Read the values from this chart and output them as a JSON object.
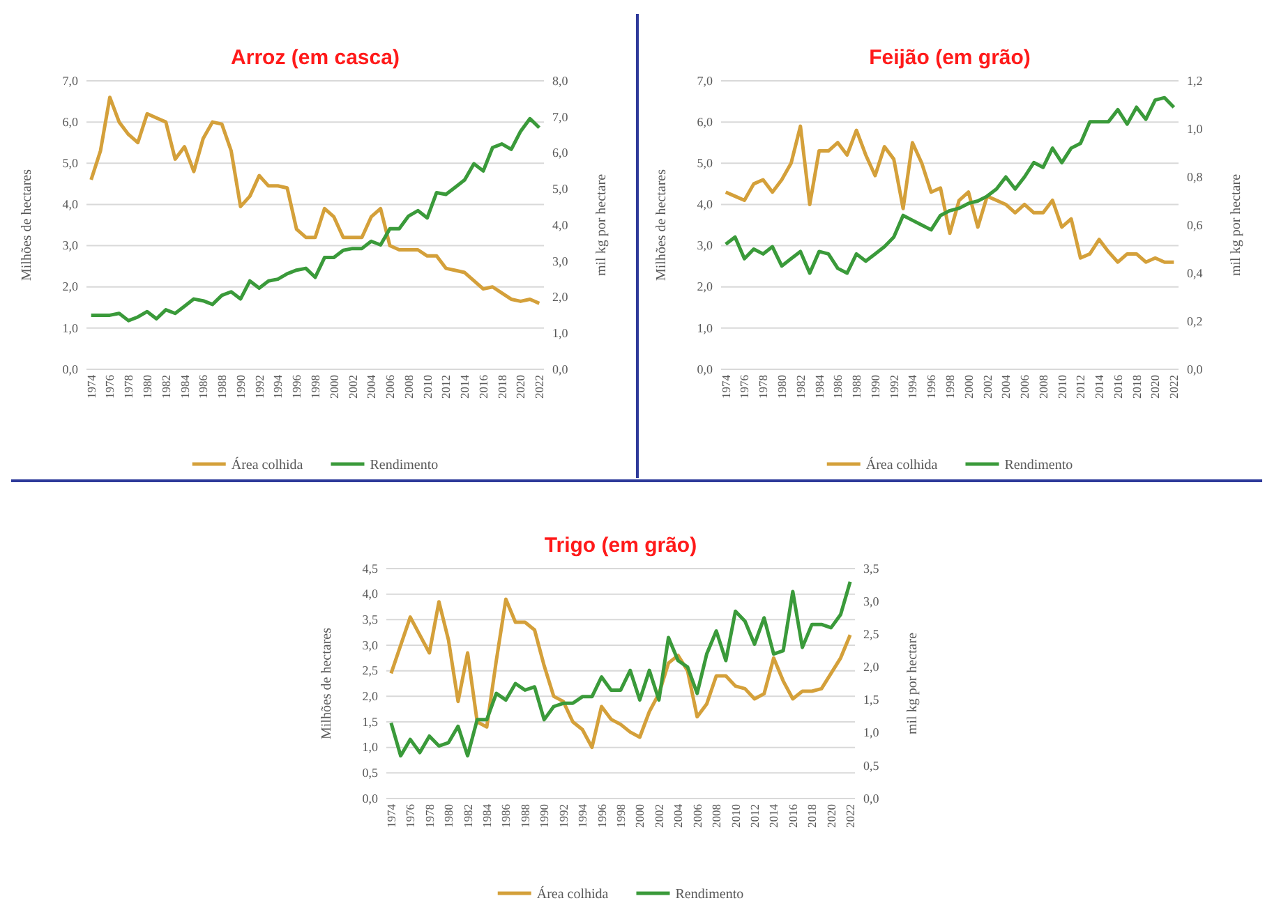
{
  "chart_data": [
    {
      "type": "line",
      "title": "Arroz (em casca)",
      "ylabel": "Milhões de hectares",
      "y2label": "mil kg por hectare",
      "categories": [
        "1974",
        null,
        "1976",
        null,
        "1978",
        null,
        "1980",
        null,
        "1982",
        null,
        "1984",
        null,
        "1986",
        null,
        "1988",
        null,
        "1990",
        null,
        "1992",
        null,
        "1994",
        null,
        "1996",
        null,
        "1998",
        null,
        "2000",
        null,
        "2002",
        null,
        "2004",
        null,
        "2006",
        null,
        "2008",
        null,
        "2010",
        null,
        "2012",
        null,
        "2014",
        null,
        "2016",
        null,
        "2018",
        null,
        "2020",
        null,
        "2022"
      ],
      "ylim": [
        0,
        7
      ],
      "yticks": [
        {
          "value": 0,
          "label": "0,0"
        },
        {
          "value": 1,
          "label": "1,0"
        },
        {
          "value": 2,
          "label": "2,0"
        },
        {
          "value": 3,
          "label": "3,0"
        },
        {
          "value": 4,
          "label": "4,0"
        },
        {
          "value": 5,
          "label": "5,0"
        },
        {
          "value": 6,
          "label": "6,0"
        },
        {
          "value": 7,
          "label": "7,0"
        }
      ],
      "y2lim": [
        0,
        8
      ],
      "y2ticks": [
        {
          "value": 0,
          "label": "0,0"
        },
        {
          "value": 1,
          "label": "1,0"
        },
        {
          "value": 2,
          "label": "2,0"
        },
        {
          "value": 3,
          "label": "3,0"
        },
        {
          "value": 4,
          "label": "4,0"
        },
        {
          "value": 5,
          "label": "5,0"
        },
        {
          "value": 6,
          "label": "6,0"
        },
        {
          "value": 7,
          "label": "7,0"
        },
        {
          "value": 8,
          "label": "8,0"
        }
      ],
      "grid": "y",
      "legend": "bottom",
      "series": [
        {
          "name": "Área colhida",
          "color": "#d4a03a",
          "values": [
            4.6,
            5.3,
            6.6,
            6.0,
            5.7,
            5.5,
            6.2,
            6.1,
            6.0,
            5.1,
            5.4,
            4.8,
            5.6,
            6.0,
            5.95,
            5.3,
            3.95,
            4.2,
            4.7,
            4.45,
            4.45,
            4.4,
            3.4,
            3.2,
            3.2,
            3.9,
            3.7,
            3.2,
            3.2,
            3.2,
            3.7,
            3.9,
            3.0,
            2.9,
            2.9,
            2.9,
            2.75,
            2.75,
            2.45,
            2.4,
            2.35,
            2.15,
            1.95,
            2.0,
            1.85,
            1.7,
            1.65,
            1.7,
            1.6
          ]
        },
        {
          "name": "Rendimento",
          "color": "#3a9a3a",
          "axis": "y2",
          "values": [
            1.5,
            1.5,
            1.5,
            1.55,
            1.35,
            1.45,
            1.6,
            1.4,
            1.65,
            1.55,
            1.75,
            1.95,
            1.9,
            1.8,
            2.05,
            2.15,
            1.95,
            2.45,
            2.25,
            2.45,
            2.5,
            2.65,
            2.75,
            2.8,
            2.55,
            3.1,
            3.1,
            3.3,
            3.35,
            3.35,
            3.55,
            3.45,
            3.9,
            3.9,
            4.25,
            4.4,
            4.2,
            4.9,
            4.85,
            5.05,
            5.25,
            5.7,
            5.5,
            6.15,
            6.25,
            6.1,
            6.6,
            6.95,
            6.7
          ]
        }
      ]
    },
    {
      "type": "line",
      "title": "Feijão (em grão)",
      "ylabel": "Milhões de hectares",
      "y2label": "mil kg por hectare",
      "categories": [
        "1974",
        null,
        "1976",
        null,
        "1978",
        null,
        "1980",
        null,
        "1982",
        null,
        "1984",
        null,
        "1986",
        null,
        "1988",
        null,
        "1990",
        null,
        "1992",
        null,
        "1994",
        null,
        "1996",
        null,
        "1998",
        null,
        "2000",
        null,
        "2002",
        null,
        "2004",
        null,
        "2006",
        null,
        "2008",
        null,
        "2010",
        null,
        "2012",
        null,
        "2014",
        null,
        "2016",
        null,
        "2018",
        null,
        "2020",
        null,
        "2022"
      ],
      "ylim": [
        0,
        7
      ],
      "yticks": [
        {
          "value": 0,
          "label": "0,0"
        },
        {
          "value": 1,
          "label": "1,0"
        },
        {
          "value": 2,
          "label": "2,0"
        },
        {
          "value": 3,
          "label": "3,0"
        },
        {
          "value": 4,
          "label": "4,0"
        },
        {
          "value": 5,
          "label": "5,0"
        },
        {
          "value": 6,
          "label": "6,0"
        },
        {
          "value": 7,
          "label": "7,0"
        }
      ],
      "y2lim": [
        0,
        1.2
      ],
      "y2ticks": [
        {
          "value": 0,
          "label": "0,0"
        },
        {
          "value": 0.2,
          "label": "0,2"
        },
        {
          "value": 0.4,
          "label": "0,4"
        },
        {
          "value": 0.6,
          "label": "0,6"
        },
        {
          "value": 0.8,
          "label": "0,8"
        },
        {
          "value": 1.0,
          "label": "1,0"
        },
        {
          "value": 1.2,
          "label": "1,2"
        }
      ],
      "grid": "y",
      "legend": "bottom",
      "series": [
        {
          "name": "Área colhida",
          "color": "#d4a03a",
          "values": [
            4.3,
            4.2,
            4.1,
            4.5,
            4.6,
            4.3,
            4.6,
            5.0,
            5.9,
            4.0,
            5.3,
            5.3,
            5.5,
            5.2,
            5.8,
            5.2,
            4.7,
            5.4,
            5.1,
            3.9,
            5.5,
            5.0,
            4.3,
            4.4,
            3.3,
            4.1,
            4.3,
            3.45,
            4.2,
            4.1,
            4.0,
            3.8,
            4.0,
            3.8,
            3.8,
            4.1,
            3.45,
            3.65,
            2.7,
            2.8,
            3.15,
            2.85,
            2.6,
            2.8,
            2.8,
            2.6,
            2.7,
            2.6,
            2.6
          ]
        },
        {
          "name": "Rendimento",
          "color": "#3a9a3a",
          "axis": "y2",
          "values": [
            0.52,
            0.55,
            0.46,
            0.5,
            0.48,
            0.51,
            0.43,
            0.46,
            0.49,
            0.4,
            0.49,
            0.48,
            0.42,
            0.4,
            0.48,
            0.45,
            0.48,
            0.51,
            0.55,
            0.64,
            0.62,
            0.6,
            0.58,
            0.64,
            0.66,
            0.67,
            0.69,
            0.7,
            0.72,
            0.75,
            0.8,
            0.75,
            0.8,
            0.86,
            0.84,
            0.92,
            0.86,
            0.92,
            0.94,
            1.03,
            1.03,
            1.03,
            1.08,
            1.02,
            1.09,
            1.04,
            1.12,
            1.13,
            1.09
          ]
        }
      ]
    },
    {
      "type": "line",
      "title": "Trigo (em grão)",
      "ylabel": "Milhões de hectares",
      "y2label": "mil kg por hectare",
      "categories": [
        "1974",
        null,
        "1976",
        null,
        "1978",
        null,
        "1980",
        null,
        "1982",
        null,
        "1984",
        null,
        "1986",
        null,
        "1988",
        null,
        "1990",
        null,
        "1992",
        null,
        "1994",
        null,
        "1996",
        null,
        "1998",
        null,
        "2000",
        null,
        "2002",
        null,
        "2004",
        null,
        "2006",
        null,
        "2008",
        null,
        "2010",
        null,
        "2012",
        null,
        "2014",
        null,
        "2016",
        null,
        "2018",
        null,
        "2020",
        null,
        "2022"
      ],
      "ylim": [
        0,
        4.5
      ],
      "yticks": [
        {
          "value": 0,
          "label": "0,0"
        },
        {
          "value": 0.5,
          "label": "0,5"
        },
        {
          "value": 1,
          "label": "1,0"
        },
        {
          "value": 1.5,
          "label": "1,5"
        },
        {
          "value": 2,
          "label": "2,0"
        },
        {
          "value": 2.5,
          "label": "2,5"
        },
        {
          "value": 3,
          "label": "3,0"
        },
        {
          "value": 3.5,
          "label": "3,5"
        },
        {
          "value": 4,
          "label": "4,0"
        },
        {
          "value": 4.5,
          "label": "4,5"
        }
      ],
      "y2lim": [
        0,
        3.5
      ],
      "y2ticks": [
        {
          "value": 0,
          "label": "0,0"
        },
        {
          "value": 0.5,
          "label": "0,5"
        },
        {
          "value": 1,
          "label": "1,0"
        },
        {
          "value": 1.5,
          "label": "1,5"
        },
        {
          "value": 2,
          "label": "2,0"
        },
        {
          "value": 2.5,
          "label": "2,5"
        },
        {
          "value": 3,
          "label": "3,0"
        },
        {
          "value": 3.5,
          "label": "3,5"
        }
      ],
      "grid": "y",
      "legend": "bottom",
      "series": [
        {
          "name": "Área colhida",
          "color": "#d4a03a",
          "values": [
            2.45,
            3.0,
            3.55,
            3.2,
            2.85,
            3.85,
            3.1,
            1.9,
            2.85,
            1.5,
            1.4,
            2.7,
            3.9,
            3.45,
            3.45,
            3.3,
            2.6,
            2.0,
            1.9,
            1.5,
            1.35,
            1.0,
            1.8,
            1.55,
            1.45,
            1.3,
            1.2,
            1.7,
            2.05,
            2.65,
            2.8,
            2.5,
            1.6,
            1.85,
            2.4,
            2.4,
            2.2,
            2.15,
            1.95,
            2.05,
            2.75,
            2.3,
            1.95,
            2.1,
            2.1,
            2.15,
            2.45,
            2.75,
            3.2
          ]
        },
        {
          "name": "Rendimento",
          "color": "#3a9a3a",
          "axis": "y2",
          "values": [
            1.15,
            0.65,
            0.9,
            0.7,
            0.95,
            0.8,
            0.85,
            1.1,
            0.65,
            1.2,
            1.2,
            1.6,
            1.5,
            1.75,
            1.65,
            1.7,
            1.2,
            1.4,
            1.45,
            1.45,
            1.55,
            1.55,
            1.85,
            1.65,
            1.65,
            1.95,
            1.5,
            1.95,
            1.5,
            2.45,
            2.1,
            2.0,
            1.6,
            2.2,
            2.55,
            2.1,
            2.85,
            2.7,
            2.35,
            2.75,
            2.2,
            2.25,
            3.15,
            2.3,
            2.65,
            2.65,
            2.6,
            2.8,
            3.3
          ]
        }
      ]
    }
  ]
}
